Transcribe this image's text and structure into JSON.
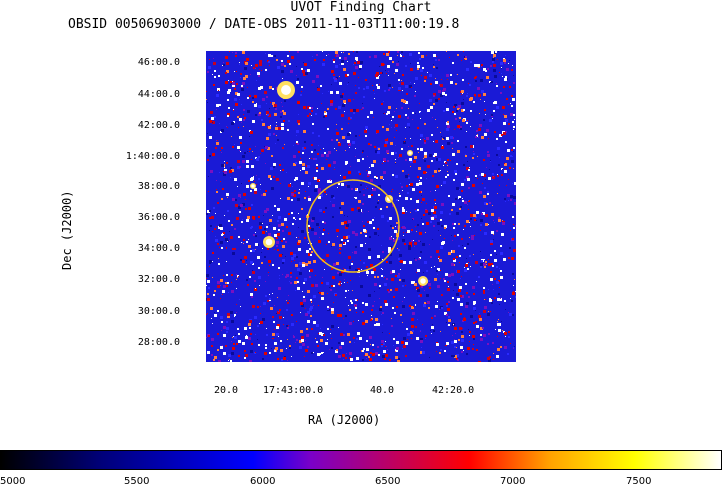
{
  "header": {
    "title": "UVOT Finding Chart",
    "subtitle": "OBSID 00506903000 / DATE-OBS 2011-11-03T11:00:19.8"
  },
  "axes": {
    "xlabel": "RA (J2000)",
    "ylabel": "Dec (J2000)",
    "y_ticks": [
      "46:00.0",
      "44:00.0",
      "42:00.0",
      "1:40:00.0",
      "38:00.0",
      "36:00.0",
      "34:00.0",
      "32:00.0",
      "30:00.0",
      "28:00.0"
    ],
    "x_ticks": [
      "20.0",
      "17:43:00.0",
      "40.0",
      "42:20.0"
    ]
  },
  "colorbar": {
    "ticks": [
      "5000",
      "5500",
      "6000",
      "6500",
      "7000",
      "7500"
    ]
  },
  "colors": {
    "sky_background": "#1a1ad6",
    "circle": "#f0c020"
  }
}
